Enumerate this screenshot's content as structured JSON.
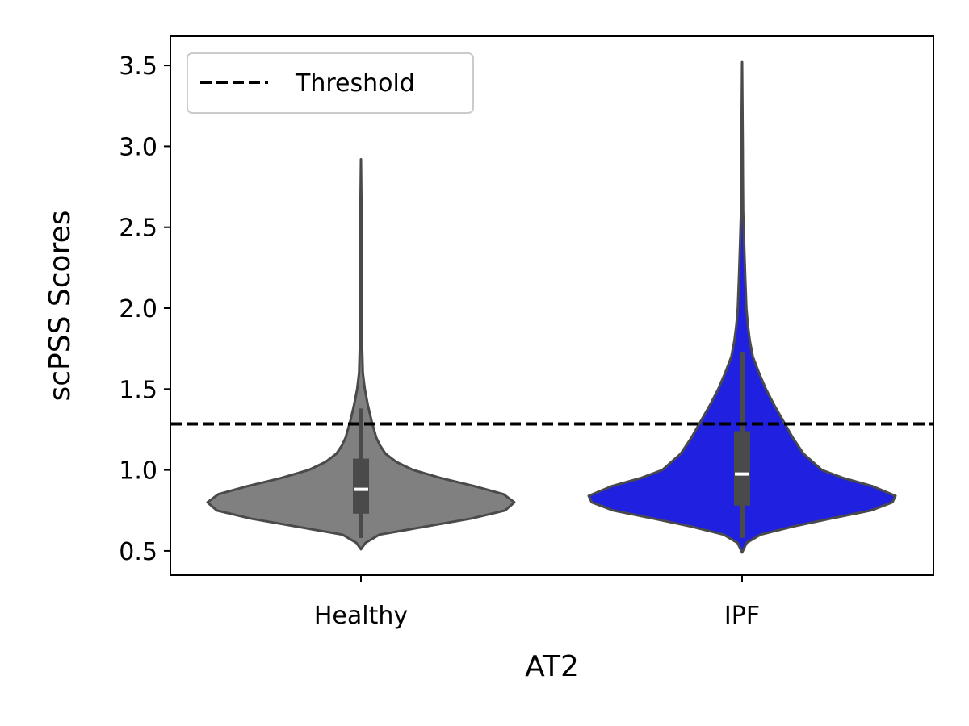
{
  "chart_data": {
    "type": "violin",
    "title": "",
    "xlabel": "AT2",
    "ylabel": "scPSS Scores",
    "categories": [
      "Healthy",
      "IPF"
    ],
    "ylim": [
      0.35,
      3.68
    ],
    "yticks": [
      "0.5",
      "1.0",
      "1.5",
      "2.0",
      "2.5",
      "3.0",
      "3.5"
    ],
    "ytick_values": [
      0.5,
      1.0,
      1.5,
      2.0,
      2.5,
      3.0,
      3.5
    ],
    "grid": false,
    "threshold": {
      "label": "Threshold",
      "value": 1.285,
      "color": "#000000"
    },
    "legend": {
      "position": "top-left",
      "entries": [
        "Threshold"
      ]
    },
    "series": [
      {
        "category": "Healthy",
        "color": "#808080",
        "min": 0.51,
        "max": 2.92,
        "q1": 0.73,
        "median": 0.88,
        "q3": 1.07,
        "whisker_low": 0.58,
        "whisker_high": 1.38,
        "density": [
          [
            0.51,
            0.0
          ],
          [
            0.55,
            0.03
          ],
          [
            0.6,
            0.12
          ],
          [
            0.65,
            0.42
          ],
          [
            0.7,
            0.72
          ],
          [
            0.75,
            0.94
          ],
          [
            0.8,
            1.0
          ],
          [
            0.85,
            0.93
          ],
          [
            0.9,
            0.74
          ],
          [
            0.95,
            0.52
          ],
          [
            1.0,
            0.34
          ],
          [
            1.05,
            0.23
          ],
          [
            1.1,
            0.16
          ],
          [
            1.15,
            0.125
          ],
          [
            1.2,
            0.1
          ],
          [
            1.3,
            0.07
          ],
          [
            1.4,
            0.045
          ],
          [
            1.5,
            0.025
          ],
          [
            1.6,
            0.012
          ],
          [
            1.75,
            0.008
          ],
          [
            2.0,
            0.006
          ],
          [
            2.5,
            0.005
          ],
          [
            2.92,
            0.0
          ]
        ]
      },
      {
        "category": "IPF",
        "color": "#2020e0",
        "min": 0.49,
        "max": 3.52,
        "q1": 0.78,
        "median": 0.975,
        "q3": 1.24,
        "whisker_low": 0.58,
        "whisker_high": 1.73,
        "density": [
          [
            0.49,
            0.0
          ],
          [
            0.55,
            0.03
          ],
          [
            0.6,
            0.12
          ],
          [
            0.65,
            0.33
          ],
          [
            0.7,
            0.58
          ],
          [
            0.75,
            0.84
          ],
          [
            0.8,
            0.98
          ],
          [
            0.84,
            1.0
          ],
          [
            0.9,
            0.85
          ],
          [
            0.95,
            0.66
          ],
          [
            1.0,
            0.52
          ],
          [
            1.1,
            0.4
          ],
          [
            1.2,
            0.33
          ],
          [
            1.3,
            0.27
          ],
          [
            1.4,
            0.21
          ],
          [
            1.5,
            0.155
          ],
          [
            1.6,
            0.11
          ],
          [
            1.7,
            0.07
          ],
          [
            1.8,
            0.05
          ],
          [
            1.9,
            0.037
          ],
          [
            2.0,
            0.028
          ],
          [
            2.2,
            0.02
          ],
          [
            2.4,
            0.013
          ],
          [
            2.6,
            0.007
          ],
          [
            2.8,
            0.005
          ],
          [
            3.0,
            0.004
          ],
          [
            3.52,
            0.0
          ]
        ]
      }
    ]
  }
}
